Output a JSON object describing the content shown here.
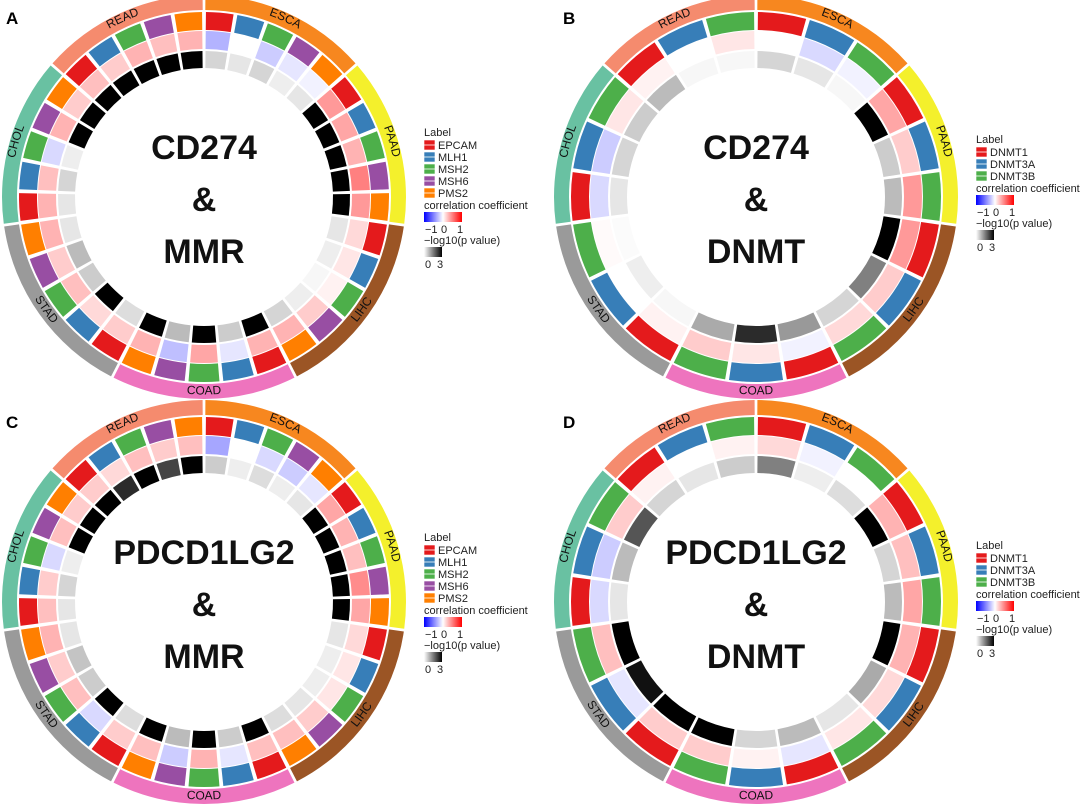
{
  "figure": {
    "panel_letters": [
      "A",
      "B",
      "C",
      "D"
    ]
  },
  "colors": {
    "cancers": {
      "READ": "#f58b6e",
      "ESCA": "#f7871f",
      "PAAD": "#f4f02c",
      "LIHC": "#9b5525",
      "COAD": "#ee74be",
      "STAD": "#9a9a9a",
      "CHOL": "#69c1a2"
    },
    "genes": {
      "EPCAM": "#e41a1c",
      "MLH1": "#377eb8",
      "MSH2": "#4daf4a",
      "MSH6": "#984ea3",
      "PMS2": "#ff7f00",
      "DNMT1": "#e41a1c",
      "DNMT3A": "#377eb8",
      "DNMT3B": "#4daf4a"
    }
  },
  "legend": {
    "label_title": "Label",
    "corr_title": "correlation coefficient",
    "corr_ticks": [
      "−1",
      "0",
      "1"
    ],
    "p_title": "−log10(p value)",
    "p_ticks": [
      "0",
      "3"
    ]
  },
  "chart_data": [
    {
      "type": "circos_heatmap",
      "panel": "A",
      "title_lines": [
        "CD274",
        "&",
        "MMR"
      ],
      "cancers": [
        "READ",
        "ESCA",
        "PAAD",
        "LIHC",
        "COAD",
        "STAD",
        "CHOL"
      ],
      "genes": [
        "EPCAM",
        "MLH1",
        "MSH2",
        "MSH6",
        "PMS2"
      ],
      "corr_range": [
        -1,
        1
      ],
      "p_range": [
        0,
        3
      ],
      "correlation": [
        [
          0.25,
          0.2,
          0.3,
          0.25,
          0.3
        ],
        [
          -0.3,
          0.0,
          -0.2,
          -0.1,
          -0.05
        ],
        [
          0.4,
          0.35,
          0.3,
          0.5,
          0.4
        ],
        [
          0.15,
          0.1,
          0.05,
          0.2,
          0.3
        ],
        [
          0.3,
          -0.1,
          0.35,
          -0.25,
          0.3
        ],
        [
          0.2,
          0.15,
          0.25,
          0.2,
          0.3
        ],
        [
          0.3,
          0.25,
          -0.15,
          0.3,
          0.2
        ]
      ],
      "neglog10p": [
        [
          3,
          3,
          3,
          3,
          3
        ],
        [
          0.5,
          0.3,
          0.5,
          0.2,
          0.3
        ],
        [
          3,
          3,
          3,
          3,
          3
        ],
        [
          0.3,
          0.2,
          0.1,
          0.2,
          0.5
        ],
        [
          3,
          0.6,
          3,
          0.8,
          3
        ],
        [
          0.4,
          3,
          0.6,
          0.8,
          0.3
        ],
        [
          0.3,
          0.5,
          0.2,
          3,
          3
        ]
      ]
    },
    {
      "type": "circos_heatmap",
      "panel": "B",
      "title_lines": [
        "CD274",
        "&",
        "DNMT"
      ],
      "cancers": [
        "READ",
        "ESCA",
        "PAAD",
        "LIHC",
        "COAD",
        "STAD",
        "CHOL"
      ],
      "genes": [
        "DNMT1",
        "DNMT3A",
        "DNMT3B"
      ],
      "corr_range": [
        -1,
        1
      ],
      "p_range": [
        0,
        3
      ],
      "correlation": [
        [
          0.05,
          0.0,
          0.1
        ],
        [
          0.0,
          -0.15,
          -0.05
        ],
        [
          0.35,
          0.2,
          0.4
        ],
        [
          0.4,
          0.2,
          0.15
        ],
        [
          -0.05,
          0.1,
          0.2
        ],
        [
          0.05,
          0.0,
          0.02
        ],
        [
          -0.15,
          -0.2,
          0.1
        ]
      ],
      "neglog10p": [
        [
          0.8,
          0.1,
          0.1
        ],
        [
          0.5,
          0.3,
          0.1
        ],
        [
          3,
          0.6,
          0.8
        ],
        [
          3,
          1.5,
          0.5
        ],
        [
          1.2,
          2.5,
          1.0
        ],
        [
          0.1,
          0.2,
          0.05
        ],
        [
          0.3,
          0.5,
          0.6
        ]
      ]
    },
    {
      "type": "circos_heatmap",
      "panel": "C",
      "title_lines": [
        "PDCD1LG2",
        "&",
        "MMR"
      ],
      "cancers": [
        "READ",
        "ESCA",
        "PAAD",
        "LIHC",
        "COAD",
        "STAD",
        "CHOL"
      ],
      "genes": [
        "EPCAM",
        "MLH1",
        "MSH2",
        "MSH6",
        "PMS2"
      ],
      "corr_range": [
        -1,
        1
      ],
      "p_range": [
        0,
        3
      ],
      "correlation": [
        [
          0.2,
          0.15,
          0.25,
          0.2,
          0.25
        ],
        [
          -0.35,
          0.0,
          -0.15,
          -0.2,
          -0.1
        ],
        [
          0.35,
          0.3,
          0.25,
          0.45,
          0.35
        ],
        [
          0.15,
          0.1,
          0.1,
          0.2,
          0.25
        ],
        [
          0.25,
          -0.1,
          0.3,
          -0.2,
          0.25
        ],
        [
          0.2,
          -0.15,
          0.25,
          0.2,
          0.3
        ],
        [
          0.25,
          0.2,
          -0.15,
          0.25,
          0.2
        ]
      ],
      "neglog10p": [
        [
          3,
          2.5,
          3,
          2.2,
          3
        ],
        [
          0.6,
          0.2,
          0.4,
          0.2,
          0.3
        ],
        [
          3,
          3,
          3,
          3,
          3
        ],
        [
          0.3,
          0.2,
          0.2,
          0.3,
          0.4
        ],
        [
          3,
          0.6,
          3,
          0.8,
          3
        ],
        [
          0.4,
          3,
          0.6,
          0.7,
          0.3
        ],
        [
          0.3,
          0.5,
          0.2,
          3,
          3
        ]
      ]
    },
    {
      "type": "circos_heatmap",
      "panel": "D",
      "title_lines": [
        "PDCD1LG2",
        "&",
        "DNMT"
      ],
      "cancers": [
        "READ",
        "ESCA",
        "PAAD",
        "LIHC",
        "COAD",
        "STAD",
        "CHOL"
      ],
      "genes": [
        "DNMT1",
        "DNMT3A",
        "DNMT3B"
      ],
      "corr_range": [
        -1,
        1
      ],
      "p_range": [
        0,
        3
      ],
      "correlation": [
        [
          0.05,
          0.0,
          0.05
        ],
        [
          0.15,
          -0.05,
          0.0
        ],
        [
          0.3,
          0.25,
          0.35
        ],
        [
          0.3,
          0.15,
          0.1
        ],
        [
          -0.1,
          0.05,
          0.2
        ],
        [
          0.2,
          -0.1,
          0.25
        ],
        [
          -0.15,
          -0.2,
          0.2
        ]
      ],
      "neglog10p": [
        [
          0.5,
          0.3,
          0.6
        ],
        [
          1.5,
          0.2,
          0.4
        ],
        [
          3,
          0.5,
          0.8
        ],
        [
          3,
          1.0,
          0.3
        ],
        [
          0.8,
          0.5,
          3
        ],
        [
          3,
          2.8,
          3
        ],
        [
          0.3,
          0.8,
          2.0
        ]
      ]
    }
  ]
}
